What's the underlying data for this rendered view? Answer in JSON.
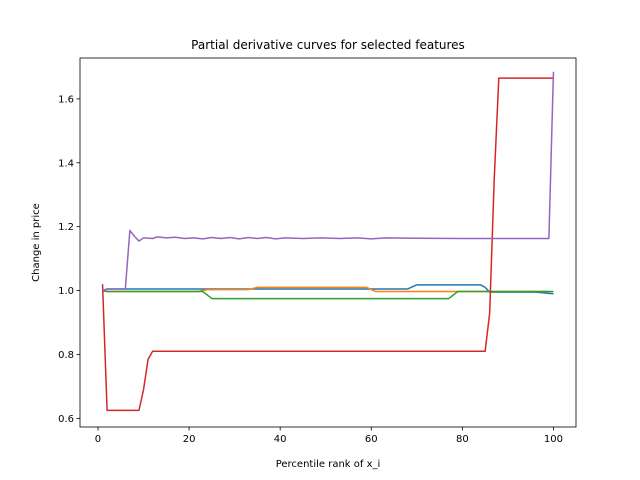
{
  "chart_data": {
    "type": "line",
    "title": "Partial derivative curves for selected features",
    "xlabel": "Percentile rank of x_i",
    "ylabel": "Change in price",
    "xlim": [
      -3.95,
      104.95
    ],
    "ylim": [
      0.573,
      1.728
    ],
    "xticks": [
      0,
      20,
      40,
      60,
      80,
      100
    ],
    "xtick_labels": [
      "0",
      "20",
      "40",
      "60",
      "80",
      "100"
    ],
    "yticks": [
      0.6,
      0.8,
      1.0,
      1.2,
      1.4,
      1.6
    ],
    "ytick_labels": [
      "0.6",
      "0.8",
      "1.0",
      "1.2",
      "1.4",
      "1.6"
    ],
    "grid": false,
    "legend": "none",
    "series": [
      {
        "color": "#1f77b4",
        "points": [
          [
            1,
            1.0
          ],
          [
            2,
            1.005
          ],
          [
            10,
            1.005
          ],
          [
            24,
            1.005
          ],
          [
            34,
            1.005
          ],
          [
            60,
            1.005
          ],
          [
            68,
            1.005
          ],
          [
            70,
            1.018
          ],
          [
            84,
            1.018
          ],
          [
            85,
            1.01
          ],
          [
            86,
            0.995
          ],
          [
            96,
            0.995
          ],
          [
            100,
            0.99
          ]
        ]
      },
      {
        "color": "#ff7f0e",
        "points": [
          [
            1,
            1.0
          ],
          [
            2,
            0.997
          ],
          [
            10,
            0.997
          ],
          [
            22,
            0.997
          ],
          [
            24,
            1.003
          ],
          [
            33,
            1.003
          ],
          [
            35,
            1.01
          ],
          [
            59,
            1.01
          ],
          [
            61,
            0.997
          ],
          [
            99,
            0.997
          ]
        ]
      },
      {
        "color": "#2ca02c",
        "points": [
          [
            1,
            1.0
          ],
          [
            2,
            0.997
          ],
          [
            12,
            0.997
          ],
          [
            23,
            0.997
          ],
          [
            25,
            0.975
          ],
          [
            77,
            0.975
          ],
          [
            79,
            0.997
          ],
          [
            100,
            0.997
          ]
        ]
      },
      {
        "color": "#d62728",
        "points": [
          [
            1,
            1.02
          ],
          [
            2,
            0.625
          ],
          [
            9,
            0.625
          ],
          [
            10,
            0.69
          ],
          [
            11,
            0.785
          ],
          [
            12,
            0.81
          ],
          [
            84,
            0.81
          ],
          [
            85,
            0.81
          ],
          [
            86,
            0.93
          ],
          [
            87,
            1.35
          ],
          [
            88,
            1.665
          ],
          [
            100,
            1.665
          ]
        ]
      },
      {
        "color": "#9467bd",
        "points": [
          [
            1,
            1.0
          ],
          [
            2,
            1.005
          ],
          [
            6,
            1.005
          ],
          [
            7,
            1.188
          ],
          [
            8,
            1.17
          ],
          [
            9,
            1.155
          ],
          [
            10,
            1.165
          ],
          [
            12,
            1.163
          ],
          [
            13,
            1.168
          ],
          [
            15,
            1.165
          ],
          [
            17,
            1.167
          ],
          [
            19,
            1.163
          ],
          [
            21,
            1.165
          ],
          [
            23,
            1.162
          ],
          [
            25,
            1.166
          ],
          [
            27,
            1.163
          ],
          [
            29,
            1.166
          ],
          [
            31,
            1.162
          ],
          [
            33,
            1.166
          ],
          [
            35,
            1.163
          ],
          [
            37,
            1.166
          ],
          [
            39,
            1.162
          ],
          [
            41,
            1.165
          ],
          [
            45,
            1.163
          ],
          [
            49,
            1.165
          ],
          [
            53,
            1.163
          ],
          [
            57,
            1.165
          ],
          [
            60,
            1.162
          ],
          [
            63,
            1.165
          ],
          [
            70,
            1.164
          ],
          [
            80,
            1.163
          ],
          [
            99,
            1.163
          ],
          [
            100,
            1.685
          ]
        ]
      }
    ]
  }
}
